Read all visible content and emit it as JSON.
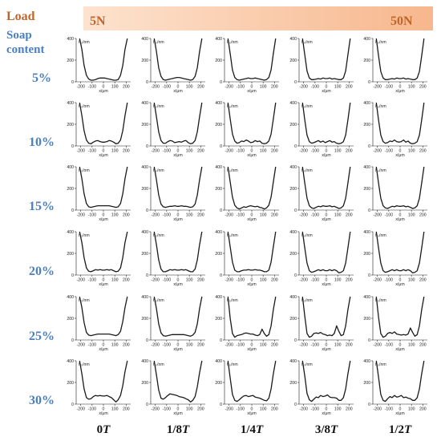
{
  "header": {
    "load_label": "Load",
    "soap_label_line1": "Soap",
    "soap_label_line2": "content",
    "load_min": "5N",
    "load_max": "50N",
    "load_color_start": "#fde3cf",
    "load_color_end": "#f7b78d"
  },
  "rows": [
    "5%",
    "10%",
    "15%",
    "20%",
    "25%",
    "30%"
  ],
  "cols_prefix": [
    "0",
    "1/8",
    "1/4",
    "3/8",
    "1/2"
  ],
  "cols_suffix": "T",
  "chart_data": {
    "type": "line",
    "ylabel": "h₀/nm",
    "xlabel": "x/μm",
    "xticks": [
      -200,
      -100,
      0,
      100,
      200
    ],
    "yticks": [
      0,
      200,
      400
    ],
    "xlim": [
      -240,
      240
    ],
    "ylim": [
      0,
      400
    ],
    "x": [
      -210,
      -190,
      -170,
      -150,
      -130,
      -110,
      -90,
      -70,
      -50,
      -30,
      -10,
      10,
      30,
      50,
      70,
      90,
      110,
      130,
      150,
      170,
      190,
      210
    ],
    "panels": [
      [
        {
          "y": [
            400,
            300,
            150,
            60,
            25,
            15,
            15,
            20,
            30,
            35,
            35,
            35,
            30,
            25,
            20,
            15,
            15,
            20,
            60,
            150,
            300,
            400
          ]
        },
        {
          "y": [
            400,
            280,
            130,
            50,
            20,
            15,
            20,
            25,
            30,
            35,
            40,
            40,
            35,
            30,
            25,
            20,
            15,
            20,
            50,
            130,
            280,
            400
          ]
        },
        {
          "y": [
            400,
            260,
            110,
            40,
            20,
            15,
            20,
            25,
            30,
            35,
            30,
            30,
            35,
            30,
            25,
            20,
            15,
            20,
            40,
            110,
            260,
            400
          ]
        },
        {
          "y": [
            400,
            250,
            100,
            35,
            20,
            20,
            25,
            30,
            25,
            35,
            30,
            30,
            35,
            25,
            30,
            25,
            20,
            20,
            35,
            100,
            250,
            400
          ]
        },
        {
          "y": [
            400,
            240,
            95,
            35,
            20,
            20,
            25,
            30,
            25,
            35,
            30,
            30,
            35,
            25,
            30,
            25,
            20,
            20,
            35,
            95,
            240,
            400
          ]
        }
      ],
      [
        {
          "y": [
            400,
            280,
            140,
            55,
            25,
            20,
            35,
            45,
            50,
            40,
            35,
            35,
            40,
            50,
            45,
            35,
            20,
            25,
            55,
            140,
            280,
            400
          ]
        },
        {
          "y": [
            400,
            270,
            130,
            50,
            25,
            25,
            40,
            50,
            45,
            30,
            35,
            40,
            35,
            45,
            50,
            30,
            20,
            25,
            50,
            130,
            270,
            400
          ]
        },
        {
          "y": [
            400,
            250,
            110,
            45,
            25,
            30,
            45,
            40,
            55,
            45,
            30,
            35,
            50,
            40,
            45,
            25,
            20,
            25,
            45,
            110,
            250,
            400
          ]
        },
        {
          "y": [
            400,
            240,
            100,
            40,
            25,
            30,
            40,
            50,
            35,
            45,
            30,
            40,
            50,
            35,
            40,
            25,
            20,
            25,
            40,
            100,
            240,
            400
          ]
        },
        {
          "y": [
            400,
            240,
            100,
            40,
            25,
            30,
            45,
            40,
            55,
            40,
            35,
            40,
            55,
            35,
            45,
            25,
            20,
            25,
            40,
            100,
            240,
            400
          ]
        }
      ],
      [
        {
          "y": [
            400,
            290,
            150,
            60,
            30,
            25,
            30,
            35,
            40,
            40,
            40,
            40,
            40,
            40,
            35,
            30,
            25,
            30,
            60,
            150,
            290,
            400
          ]
        },
        {
          "y": [
            400,
            280,
            140,
            55,
            30,
            25,
            30,
            35,
            35,
            40,
            35,
            35,
            40,
            35,
            35,
            30,
            25,
            30,
            55,
            140,
            280,
            400
          ]
        },
        {
          "y": [
            400,
            260,
            120,
            45,
            20,
            10,
            20,
            30,
            25,
            35,
            40,
            35,
            30,
            35,
            25,
            20,
            10,
            20,
            45,
            120,
            260,
            400
          ]
        },
        {
          "y": [
            400,
            250,
            110,
            40,
            20,
            15,
            25,
            35,
            30,
            40,
            35,
            35,
            40,
            30,
            35,
            25,
            15,
            20,
            40,
            110,
            250,
            400
          ]
        },
        {
          "y": [
            400,
            250,
            110,
            40,
            20,
            15,
            25,
            35,
            30,
            40,
            35,
            35,
            40,
            30,
            35,
            25,
            15,
            20,
            40,
            110,
            250,
            400
          ]
        }
      ],
      [
        {
          "y": [
            400,
            300,
            160,
            65,
            35,
            30,
            40,
            50,
            45,
            50,
            45,
            45,
            50,
            45,
            50,
            40,
            30,
            35,
            65,
            160,
            300,
            400
          ]
        },
        {
          "y": [
            400,
            280,
            140,
            55,
            30,
            30,
            40,
            50,
            45,
            50,
            45,
            45,
            50,
            45,
            50,
            40,
            30,
            30,
            55,
            140,
            280,
            400
          ]
        },
        {
          "y": [
            400,
            260,
            120,
            45,
            30,
            30,
            40,
            45,
            45,
            50,
            45,
            45,
            50,
            45,
            45,
            40,
            30,
            30,
            45,
            120,
            260,
            400
          ]
        },
        {
          "y": [
            400,
            250,
            110,
            40,
            25,
            30,
            40,
            50,
            40,
            50,
            40,
            40,
            50,
            40,
            50,
            40,
            20,
            25,
            40,
            110,
            250,
            400
          ]
        },
        {
          "y": [
            400,
            250,
            110,
            40,
            25,
            30,
            40,
            50,
            40,
            50,
            40,
            40,
            50,
            40,
            50,
            40,
            20,
            25,
            40,
            110,
            250,
            400
          ]
        }
      ],
      [
        {
          "y": [
            400,
            300,
            160,
            70,
            45,
            40,
            45,
            50,
            55,
            55,
            55,
            55,
            55,
            55,
            50,
            45,
            40,
            50,
            80,
            170,
            300,
            400
          ]
        },
        {
          "y": [
            400,
            290,
            150,
            65,
            40,
            35,
            40,
            45,
            50,
            50,
            50,
            50,
            50,
            50,
            45,
            40,
            35,
            45,
            70,
            150,
            290,
            400
          ]
        },
        {
          "y": [
            400,
            200,
            60,
            25,
            40,
            45,
            50,
            60,
            65,
            60,
            55,
            55,
            45,
            40,
            50,
            100,
            60,
            35,
            50,
            130,
            280,
            400
          ]
        },
        {
          "y": [
            400,
            220,
            60,
            25,
            35,
            60,
            65,
            60,
            70,
            55,
            50,
            40,
            45,
            40,
            60,
            130,
            80,
            40,
            50,
            130,
            280,
            400
          ]
        },
        {
          "y": [
            400,
            210,
            60,
            25,
            35,
            60,
            70,
            60,
            75,
            55,
            50,
            45,
            50,
            45,
            55,
            110,
            70,
            35,
            50,
            130,
            280,
            400
          ]
        }
      ],
      [
        {
          "y": [
            400,
            280,
            140,
            60,
            45,
            50,
            70,
            80,
            75,
            80,
            75,
            75,
            80,
            70,
            60,
            40,
            20,
            40,
            80,
            170,
            300,
            400
          ]
        },
        {
          "y": [
            400,
            270,
            130,
            55,
            45,
            60,
            80,
            95,
            90,
            85,
            80,
            70,
            65,
            60,
            50,
            40,
            20,
            35,
            70,
            160,
            290,
            400
          ]
        },
        {
          "y": [
            400,
            240,
            90,
            35,
            25,
            40,
            60,
            75,
            80,
            70,
            75,
            80,
            65,
            60,
            55,
            45,
            35,
            30,
            55,
            140,
            280,
            400
          ]
        },
        {
          "y": [
            400,
            260,
            100,
            40,
            25,
            45,
            65,
            60,
            80,
            70,
            75,
            85,
            65,
            60,
            60,
            55,
            35,
            35,
            60,
            140,
            280,
            400
          ]
        },
        {
          "y": [
            400,
            250,
            90,
            35,
            25,
            50,
            70,
            60,
            80,
            65,
            70,
            80,
            60,
            65,
            55,
            50,
            35,
            35,
            60,
            140,
            280,
            400
          ]
        }
      ]
    ]
  }
}
